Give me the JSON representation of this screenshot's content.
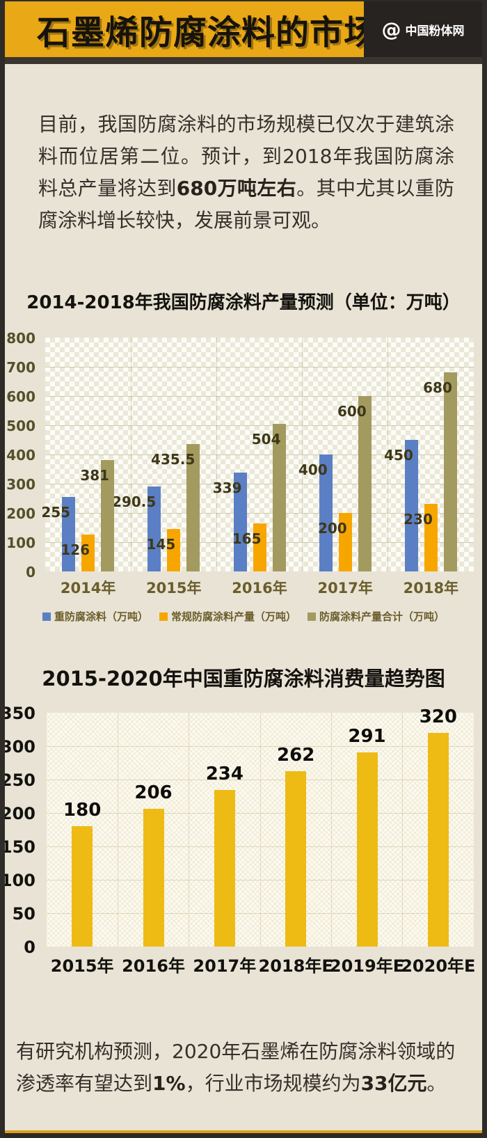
{
  "header": {
    "title": "石墨烯防腐涂料的市场",
    "logo": {
      "symbol": "@",
      "text": "中国粉体网"
    }
  },
  "intro": {
    "text_pre": "目前，我国防腐涂料的市场规模已仅次于建筑涂料而位居第二位。预计，到2018年我国防腐涂料总产量将达到",
    "text_bold": "680万吨左右",
    "text_post": "。其中尤其以重防腐涂料增长较快，发展前景可观。"
  },
  "footer_note": {
    "text_pre": "有研究机构预测，2020年石墨烯在防腐涂料领域的渗透率有望达到",
    "text_bold1": "1%",
    "text_mid": "，行业市场规模约为",
    "text_bold2": "33亿元",
    "text_post": "。"
  },
  "colors": {
    "header_bg": "#e9a816",
    "page_bg": "#e8e3d5",
    "frame": "#2f2b26",
    "series_blue": "#5b7fc4",
    "series_orange": "#f7a600",
    "series_olive": "#a39a60",
    "bar_gold": "#edbb14"
  },
  "chart_data": [
    {
      "type": "bar",
      "title": "2014-2018年我国防腐涂料产量预测（单位：万吨）",
      "categories": [
        "2014年",
        "2015年",
        "2016年",
        "2017年",
        "2018年"
      ],
      "series": [
        {
          "name": "重防腐涂料（万吨）",
          "color": "#5b7fc4",
          "values": [
            255,
            290.5,
            339,
            400,
            450
          ]
        },
        {
          "name": "常规防腐涂料产量（万吨）",
          "color": "#f7a600",
          "values": [
            126,
            145,
            165,
            200,
            230
          ]
        },
        {
          "name": "防腐涂料产量合计（万吨）",
          "color": "#a39a60",
          "values": [
            381,
            435.5,
            504,
            600,
            680
          ]
        }
      ],
      "ylim": [
        0,
        800
      ],
      "ytick": 100,
      "grid": true,
      "legend_position": "bottom"
    },
    {
      "type": "bar",
      "title": "2015-2020年中国重防腐涂料消费量趋势图",
      "categories": [
        "2015年",
        "2016年",
        "2017年",
        "2018年E",
        "2019年E",
        "2020年E"
      ],
      "values": [
        180,
        206,
        234,
        262,
        291,
        320
      ],
      "color": "#edbb14",
      "ylim": [
        0,
        350
      ],
      "ytick": 50,
      "grid": true,
      "legend_position": "none"
    }
  ]
}
